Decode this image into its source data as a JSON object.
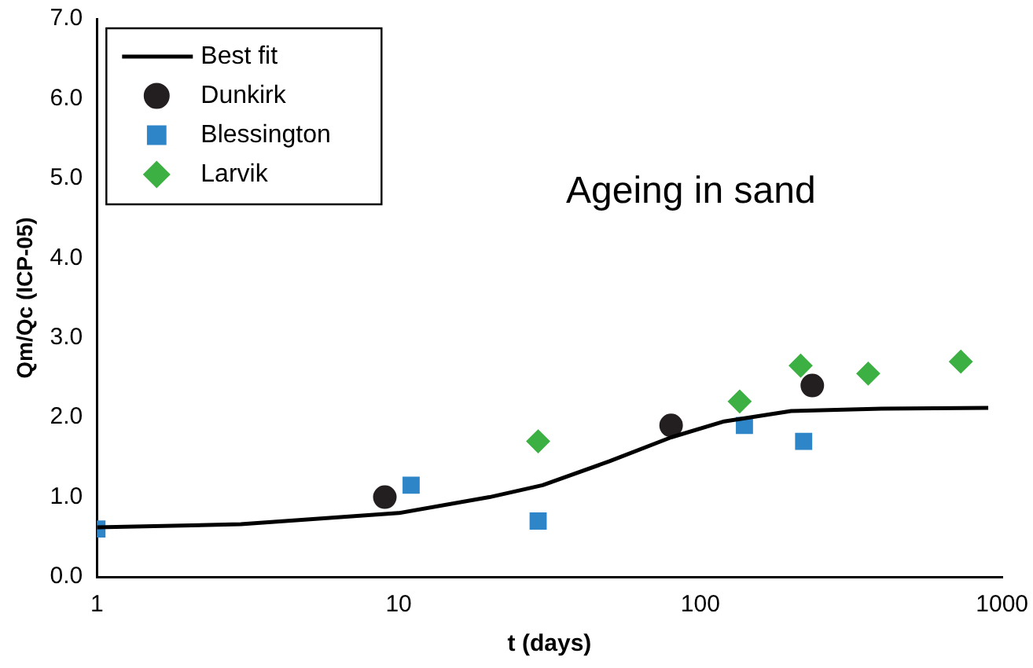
{
  "chart_data": {
    "type": "scatter",
    "xlabel": "t (days)",
    "ylabel": "Qm/Qc (ICP-05)",
    "log": "x",
    "xlim": [
      1,
      1000
    ],
    "xticks": [
      1,
      10,
      100,
      1000
    ],
    "ylim": [
      0,
      7
    ],
    "yticks": [
      {
        "value": 0,
        "label": "0.0"
      },
      {
        "value": 1,
        "label": "1.0"
      },
      {
        "value": 2,
        "label": "2.0"
      },
      {
        "value": 3,
        "label": "3.0"
      },
      {
        "value": 4,
        "label": "4.0"
      },
      {
        "value": 5,
        "label": "5.0"
      },
      {
        "value": 6,
        "label": "6.0"
      },
      {
        "value": 7,
        "label": "7.0"
      }
    ],
    "grid": false,
    "legend": "top left",
    "annotations": [
      "Ageing in sand"
    ],
    "series": [
      {
        "name": "Best fit",
        "type": "line",
        "color": "#000000",
        "marker": "none",
        "line_style": "solid",
        "x": [
          1,
          3,
          10,
          20,
          30,
          50,
          80,
          120,
          200,
          400,
          900
        ],
        "values": [
          0.62,
          0.66,
          0.8,
          1.0,
          1.15,
          1.45,
          1.75,
          1.95,
          2.08,
          2.11,
          2.12
        ]
      },
      {
        "name": "Dunkirk",
        "type": "scatter",
        "color": "#231f20",
        "marker": "circle",
        "x": [
          9,
          80,
          235
        ],
        "values": [
          1.0,
          1.9,
          2.4
        ]
      },
      {
        "name": "Blessington",
        "type": "scatter",
        "color": "#2e86c8",
        "marker": "square",
        "x": [
          1,
          11,
          29,
          140,
          220
        ],
        "values": [
          0.6,
          1.15,
          0.7,
          1.9,
          1.7
        ]
      },
      {
        "name": "Larvik",
        "type": "scatter",
        "color": "#3cb043",
        "marker": "diamond",
        "x": [
          29,
          135,
          215,
          360,
          730
        ],
        "values": [
          1.7,
          2.2,
          2.65,
          2.55,
          2.7
        ]
      }
    ]
  }
}
